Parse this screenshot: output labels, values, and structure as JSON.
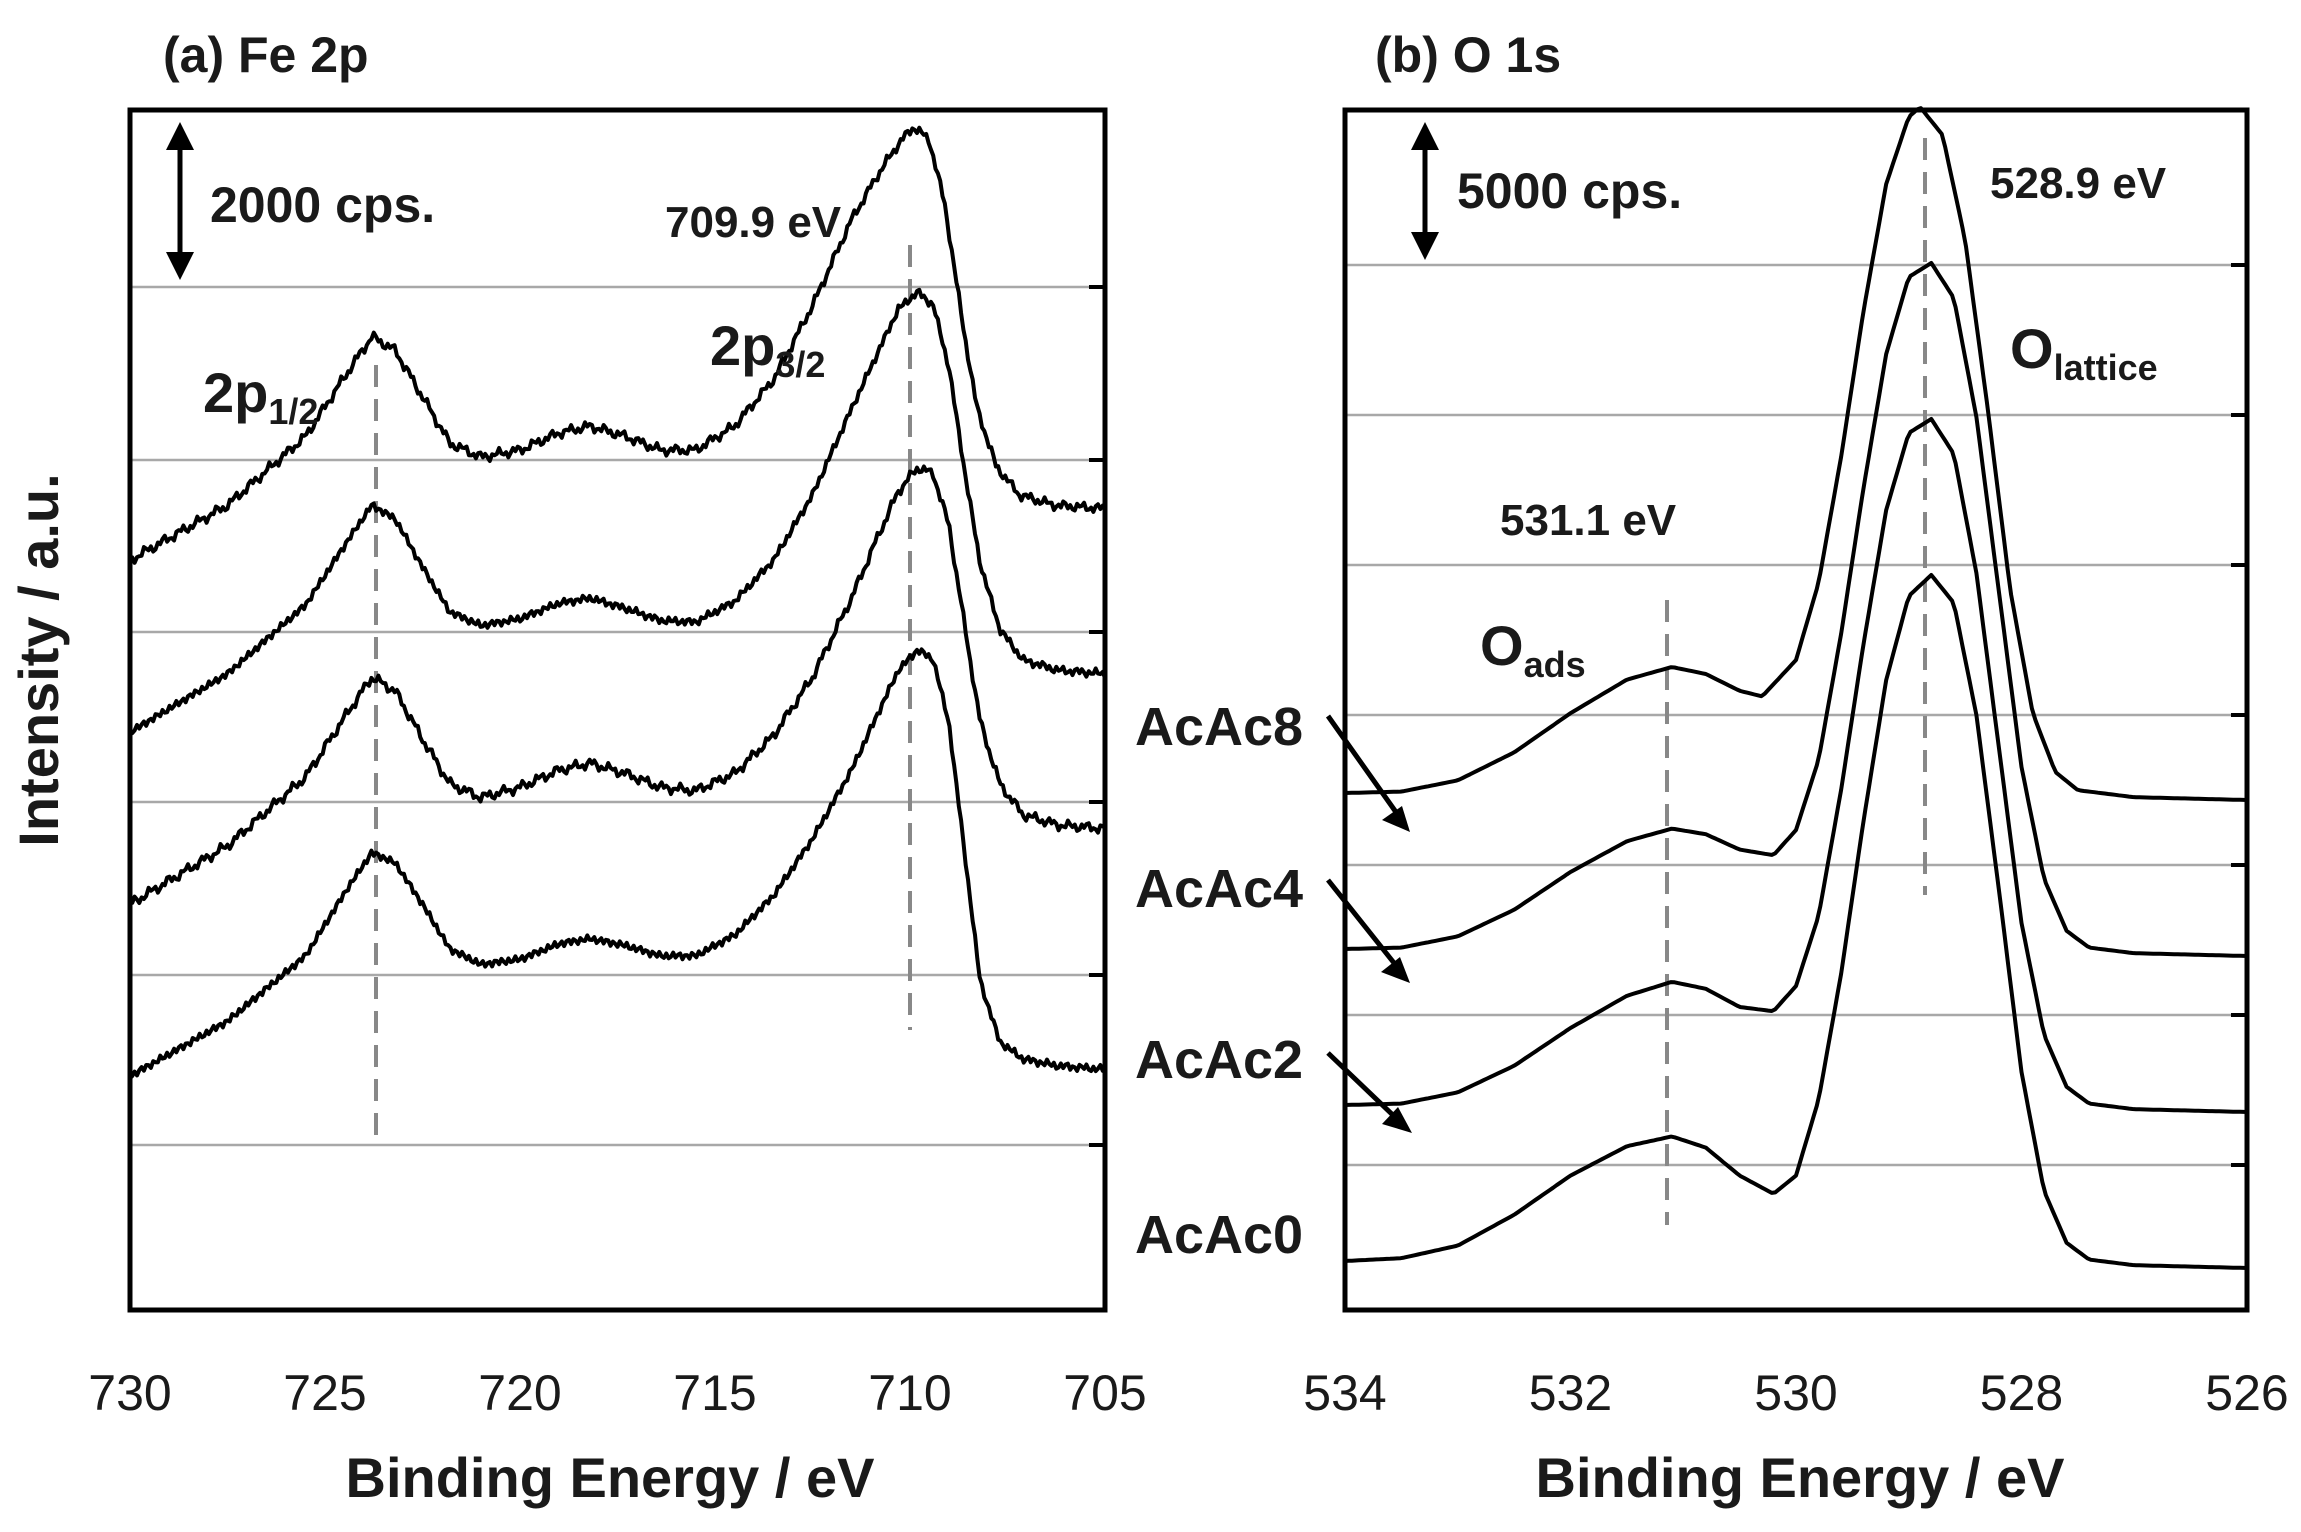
{
  "ylabel": "Intensity / a.u.",
  "chart_data": [
    {
      "type": "line",
      "title": "(a) Fe 2p",
      "xlabel": "Binding Energy / eV",
      "ylabel": "Intensity / a.u.",
      "xlim": [
        730,
        705
      ],
      "xticks": [
        "730",
        "725",
        "720",
        "715",
        "710",
        "705"
      ],
      "grid": true,
      "scale_bar": {
        "label": "2000 cps.",
        "value": 2000
      },
      "reference_lines": [
        723.6,
        709.9
      ],
      "annotations": {
        "peak_value": "709.9 eV",
        "p12_main": "2p",
        "p12_sub": "1/2",
        "p32_main": "2p",
        "p32_sub": "3/2"
      },
      "series": [
        {
          "name": "AcAc8",
          "offset": 3,
          "points": [
            [
              730,
              0.4
            ],
            [
              727.5,
              0.72
            ],
            [
              725.5,
              1.12
            ],
            [
              724.4,
              1.5
            ],
            [
              723.8,
              1.7
            ],
            [
              723.2,
              1.62
            ],
            [
              722.5,
              1.35
            ],
            [
              721.8,
              1.08
            ],
            [
              721,
              1.0
            ],
            [
              720,
              1.04
            ],
            [
              719,
              1.14
            ],
            [
              718.2,
              1.18
            ],
            [
              717.3,
              1.12
            ],
            [
              716.4,
              1.04
            ],
            [
              715.5,
              1.04
            ],
            [
              714.5,
              1.18
            ],
            [
              713.5,
              1.45
            ],
            [
              712.5,
              1.88
            ],
            [
              711.5,
              2.38
            ],
            [
              710.8,
              2.65
            ],
            [
              710.3,
              2.82
            ],
            [
              709.9,
              2.92
            ],
            [
              709.5,
              2.84
            ],
            [
              709.1,
              2.46
            ],
            [
              708.7,
              1.85
            ],
            [
              708.3,
              1.3
            ],
            [
              707.8,
              0.95
            ],
            [
              707.2,
              0.78
            ],
            [
              706.3,
              0.72
            ],
            [
              705,
              0.7
            ]
          ]
        },
        {
          "name": "AcAc4",
          "offset": 2,
          "points": [
            [
              730,
              0.4
            ],
            [
              727.5,
              0.74
            ],
            [
              725.5,
              1.14
            ],
            [
              724.4,
              1.52
            ],
            [
              723.8,
              1.72
            ],
            [
              723.2,
              1.64
            ],
            [
              722.5,
              1.36
            ],
            [
              721.8,
              1.1
            ],
            [
              721,
              1.02
            ],
            [
              720,
              1.06
            ],
            [
              719,
              1.15
            ],
            [
              718.2,
              1.18
            ],
            [
              717.3,
              1.12
            ],
            [
              716.4,
              1.05
            ],
            [
              715.5,
              1.04
            ],
            [
              714.5,
              1.16
            ],
            [
              713.5,
              1.4
            ],
            [
              712.5,
              1.78
            ],
            [
              711.5,
              2.28
            ],
            [
              710.8,
              2.62
            ],
            [
              710.3,
              2.86
            ],
            [
              709.8,
              2.96
            ],
            [
              709.4,
              2.88
            ],
            [
              709.0,
              2.52
            ],
            [
              708.6,
              1.92
            ],
            [
              708.2,
              1.38
            ],
            [
              707.7,
              1.0
            ],
            [
              707.1,
              0.82
            ],
            [
              706.2,
              0.76
            ],
            [
              705,
              0.74
            ]
          ]
        },
        {
          "name": "AcAc2",
          "offset": 1,
          "points": [
            [
              730,
              0.4
            ],
            [
              727.5,
              0.74
            ],
            [
              725.5,
              1.14
            ],
            [
              724.4,
              1.52
            ],
            [
              723.8,
              1.72
            ],
            [
              723.2,
              1.64
            ],
            [
              722.5,
              1.36
            ],
            [
              721.8,
              1.1
            ],
            [
              721,
              1.02
            ],
            [
              720,
              1.08
            ],
            [
              719,
              1.18
            ],
            [
              718.2,
              1.22
            ],
            [
              717.3,
              1.16
            ],
            [
              716.4,
              1.08
            ],
            [
              715.5,
              1.06
            ],
            [
              714.5,
              1.16
            ],
            [
              713.5,
              1.38
            ],
            [
              712.5,
              1.72
            ],
            [
              711.5,
              2.18
            ],
            [
              710.8,
              2.55
            ],
            [
              710.3,
              2.8
            ],
            [
              709.8,
              2.94
            ],
            [
              709.4,
              2.9
            ],
            [
              709.0,
              2.6
            ],
            [
              708.6,
              2.02
            ],
            [
              708.2,
              1.46
            ],
            [
              707.7,
              1.1
            ],
            [
              707.1,
              0.92
            ],
            [
              706.2,
              0.86
            ],
            [
              705,
              0.84
            ]
          ]
        },
        {
          "name": "AcAc0",
          "offset": 0,
          "points": [
            [
              730,
              0.4
            ],
            [
              727.5,
              0.72
            ],
            [
              725.5,
              1.1
            ],
            [
              724.4,
              1.5
            ],
            [
              723.8,
              1.7
            ],
            [
              723.2,
              1.64
            ],
            [
              722.5,
              1.4
            ],
            [
              721.8,
              1.14
            ],
            [
              721,
              1.05
            ],
            [
              720,
              1.08
            ],
            [
              719,
              1.17
            ],
            [
              718.2,
              1.2
            ],
            [
              717.3,
              1.16
            ],
            [
              716.4,
              1.1
            ],
            [
              715.5,
              1.1
            ],
            [
              714.5,
              1.22
            ],
            [
              713.5,
              1.45
            ],
            [
              712.5,
              1.78
            ],
            [
              711.5,
              2.18
            ],
            [
              710.8,
              2.52
            ],
            [
              710.3,
              2.76
            ],
            [
              709.8,
              2.88
            ],
            [
              709.4,
              2.82
            ],
            [
              709.0,
              2.45
            ],
            [
              708.6,
              1.7
            ],
            [
              708.2,
              0.95
            ],
            [
              707.7,
              0.6
            ],
            [
              707.1,
              0.5
            ],
            [
              706.2,
              0.46
            ],
            [
              705,
              0.44
            ]
          ]
        }
      ]
    },
    {
      "type": "line",
      "title": "(b) O 1s",
      "xlabel": "Binding Energy / eV",
      "ylabel": "Intensity / a.u.",
      "xlim": [
        534,
        526
      ],
      "xticks": [
        "534",
        "532",
        "530",
        "528",
        "526"
      ],
      "grid": true,
      "scale_bar": {
        "label": "5000 cps.",
        "value": 5000
      },
      "reference_lines": [
        531.1,
        528.9
      ],
      "annotations": {
        "peak1_value": "531.1 eV",
        "peak2_value": "528.9 eV",
        "ads_main": "O",
        "ads_sub": "ads",
        "lattice_main": "O",
        "lattice_sub": "lattice"
      },
      "series": [
        {
          "name": "AcAc8",
          "offset": 3,
          "points": [
            [
              534,
              0.05
            ],
            [
              533.5,
              0.06
            ],
            [
              533,
              0.14
            ],
            [
              532.5,
              0.34
            ],
            [
              532,
              0.62
            ],
            [
              531.5,
              0.86
            ],
            [
              531.1,
              0.95
            ],
            [
              530.8,
              0.9
            ],
            [
              530.5,
              0.78
            ],
            [
              530.3,
              0.74
            ],
            [
              530.0,
              1.0
            ],
            [
              529.8,
              1.55
            ],
            [
              529.6,
              2.45
            ],
            [
              529.4,
              3.5
            ],
            [
              529.2,
              4.4
            ],
            [
              529.0,
              4.88
            ],
            [
              528.9,
              4.95
            ],
            [
              528.7,
              4.75
            ],
            [
              528.5,
              4.0
            ],
            [
              528.3,
              2.8
            ],
            [
              528.1,
              1.5
            ],
            [
              527.9,
              0.62
            ],
            [
              527.7,
              0.2
            ],
            [
              527.5,
              0.07
            ],
            [
              527,
              0.02
            ],
            [
              526,
              0.0
            ]
          ]
        },
        {
          "name": "AcAc4",
          "offset": 2,
          "points": [
            [
              534,
              0.05
            ],
            [
              533.5,
              0.06
            ],
            [
              533,
              0.14
            ],
            [
              532.5,
              0.33
            ],
            [
              532,
              0.6
            ],
            [
              531.5,
              0.82
            ],
            [
              531.1,
              0.91
            ],
            [
              530.8,
              0.87
            ],
            [
              530.5,
              0.76
            ],
            [
              530.2,
              0.72
            ],
            [
              530.0,
              0.9
            ],
            [
              529.8,
              1.4
            ],
            [
              529.6,
              2.3
            ],
            [
              529.4,
              3.35
            ],
            [
              529.2,
              4.3
            ],
            [
              529.0,
              4.85
            ],
            [
              528.8,
              4.95
            ],
            [
              528.6,
              4.7
            ],
            [
              528.4,
              3.85
            ],
            [
              528.2,
              2.6
            ],
            [
              528.0,
              1.35
            ],
            [
              527.8,
              0.55
            ],
            [
              527.6,
              0.18
            ],
            [
              527.4,
              0.06
            ],
            [
              527,
              0.02
            ],
            [
              526,
              0.0
            ]
          ]
        },
        {
          "name": "AcAc2",
          "offset": 1,
          "points": [
            [
              534,
              0.05
            ],
            [
              533.5,
              0.06
            ],
            [
              533,
              0.14
            ],
            [
              532.5,
              0.33
            ],
            [
              532,
              0.6
            ],
            [
              531.5,
              0.83
            ],
            [
              531.1,
              0.93
            ],
            [
              530.8,
              0.88
            ],
            [
              530.5,
              0.75
            ],
            [
              530.2,
              0.72
            ],
            [
              530.0,
              0.9
            ],
            [
              529.8,
              1.4
            ],
            [
              529.6,
              2.3
            ],
            [
              529.4,
              3.35
            ],
            [
              529.2,
              4.3
            ],
            [
              529.0,
              4.85
            ],
            [
              528.8,
              4.95
            ],
            [
              528.6,
              4.7
            ],
            [
              528.4,
              3.85
            ],
            [
              528.2,
              2.6
            ],
            [
              528.0,
              1.35
            ],
            [
              527.8,
              0.55
            ],
            [
              527.6,
              0.18
            ],
            [
              527.4,
              0.06
            ],
            [
              527,
              0.02
            ],
            [
              526,
              0.0
            ]
          ]
        },
        {
          "name": "AcAc0",
          "offset": 0,
          "points": [
            [
              534,
              0.05
            ],
            [
              533.5,
              0.07
            ],
            [
              533,
              0.16
            ],
            [
              532.5,
              0.38
            ],
            [
              532,
              0.66
            ],
            [
              531.5,
              0.87
            ],
            [
              531.1,
              0.94
            ],
            [
              530.8,
              0.86
            ],
            [
              530.5,
              0.66
            ],
            [
              530.2,
              0.53
            ],
            [
              530.0,
              0.66
            ],
            [
              529.8,
              1.2
            ],
            [
              529.6,
              2.1
            ],
            [
              529.4,
              3.2
            ],
            [
              529.2,
              4.2
            ],
            [
              529.0,
              4.8
            ],
            [
              528.8,
              4.95
            ],
            [
              528.6,
              4.75
            ],
            [
              528.4,
              3.95
            ],
            [
              528.2,
              2.7
            ],
            [
              528.0,
              1.4
            ],
            [
              527.8,
              0.55
            ],
            [
              527.6,
              0.18
            ],
            [
              527.4,
              0.06
            ],
            [
              527,
              0.02
            ],
            [
              526,
              0.0
            ]
          ]
        }
      ],
      "sample_labels": [
        "AcAc8",
        "AcAc4",
        "AcAc2",
        "AcAc0"
      ]
    }
  ]
}
